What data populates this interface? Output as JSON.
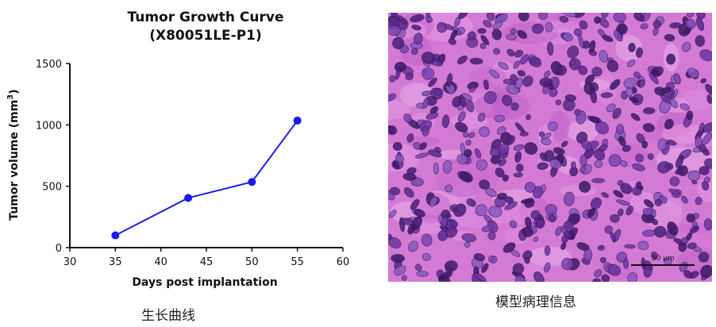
{
  "chart_data": {
    "type": "line",
    "title": "Tumor Growth Curve",
    "subtitle": "(X80051LE-P1)",
    "xlabel": "Days post implantation",
    "ylabel": "Tumor volume (mm",
    "ylabel_superscript": "3",
    "ylabel_close": ")",
    "xlim": [
      30,
      60
    ],
    "ylim": [
      0,
      1500
    ],
    "x_ticks": [
      "30",
      "35",
      "40",
      "45",
      "50",
      "55",
      "60"
    ],
    "y_ticks": [
      "0",
      "500",
      "1000",
      "1500"
    ],
    "series": [
      {
        "x": [
          35,
          43,
          50,
          55
        ],
        "values": [
          100,
          405,
          535,
          1035
        ]
      }
    ],
    "series_color": "#1a1aef"
  },
  "captions": {
    "left": "生长曲线",
    "right": "模型病理信息"
  },
  "histology": {
    "scale_label": "50 µm",
    "background_color": "#d27ad4"
  }
}
